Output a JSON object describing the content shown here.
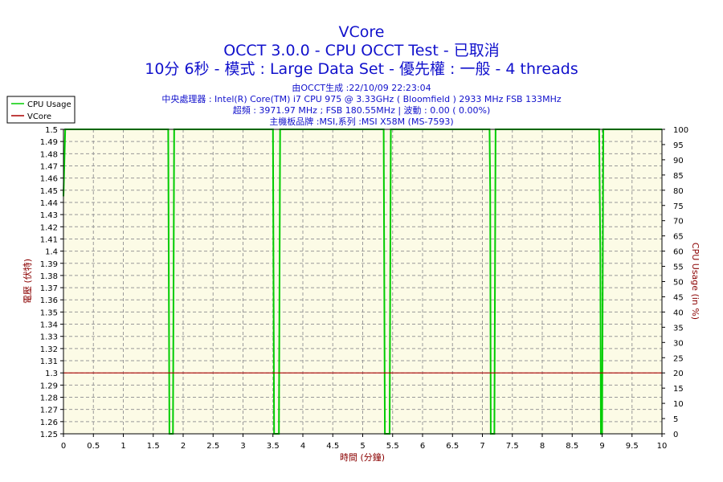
{
  "header": {
    "title": "VCore",
    "subtitle_1": "OCCT 3.0.0 - CPU OCCT Test - 已取消",
    "subtitle_2": "10分 6秒 - 模式 : Large Data Set - 優先權 : 一般 - 4 threads",
    "info_1": "由OCCT生成 :22/10/09 22:23:04",
    "info_2": "中央處理器 : Intel(R) Core(TM) i7 CPU 975 @ 3.33GHz ( Bloomfield ) 2933 MHz FSB 133MHz",
    "info_3": "超頻 : 3971.97 MHz ; FSB 180.55MHz | 波動 : 0.00 ( 0.00%)",
    "info_4": "主機板品牌 :MSI,系列 :MSI X58M (MS-7593)"
  },
  "colors": {
    "plot_bg": "#fcfbe6",
    "grid": "#999999",
    "cpu_usage": "#00cc00",
    "vcore": "#aa0000",
    "title": "#1111cc",
    "axis_label": "#8b0000"
  },
  "chart_data": {
    "type": "line",
    "xlabel": "時間 (分鐘)",
    "ylabel_left": "電壓 (伏特)",
    "ylabel_right": "CPU Usage (in %)",
    "xlim": [
      0,
      10
    ],
    "ylim_left": [
      1.25,
      1.5
    ],
    "ylim_right": [
      0,
      100
    ],
    "x_ticks": [
      "0",
      "0.5",
      "1",
      "1.5",
      "2",
      "2.5",
      "3",
      "3.5",
      "4",
      "4.5",
      "5",
      "5.5",
      "6",
      "6.5",
      "7",
      "7.5",
      "8",
      "8.5",
      "9",
      "9.5",
      "10"
    ],
    "y_left_ticks": [
      "1.25",
      "1.26",
      "1.27",
      "1.28",
      "1.29",
      "1.3",
      "1.31",
      "1.32",
      "1.33",
      "1.34",
      "1.35",
      "1.36",
      "1.37",
      "1.38",
      "1.39",
      "1.4",
      "1.41",
      "1.42",
      "1.43",
      "1.44",
      "1.45",
      "1.46",
      "1.47",
      "1.48",
      "1.49",
      "1.5"
    ],
    "y_right_ticks": [
      "0",
      "5",
      "10",
      "15",
      "20",
      "25",
      "30",
      "35",
      "40",
      "45",
      "50",
      "55",
      "60",
      "65",
      "70",
      "75",
      "80",
      "85",
      "90",
      "95",
      "100"
    ],
    "grid": true,
    "legend_position": "top-left",
    "series": [
      {
        "name": "CPU Usage",
        "axis": "right",
        "x": [
          0.0,
          0.03,
          0.05,
          1.75,
          1.77,
          1.83,
          1.85,
          3.5,
          3.52,
          3.6,
          3.62,
          5.35,
          5.37,
          5.45,
          5.47,
          7.12,
          7.13,
          7.14,
          7.15,
          7.2,
          7.22,
          8.95,
          8.97,
          8.98,
          9.0,
          9.02,
          10.0
        ],
        "values": [
          78,
          100,
          100,
          100,
          0,
          0,
          100,
          100,
          0,
          0,
          100,
          100,
          0,
          0,
          100,
          100,
          80,
          0,
          0,
          0,
          100,
          100,
          60,
          0,
          0,
          100,
          100
        ]
      },
      {
        "name": "VCore",
        "axis": "left",
        "x": [
          0,
          10
        ],
        "values": [
          1.3,
          1.3
        ]
      }
    ]
  }
}
